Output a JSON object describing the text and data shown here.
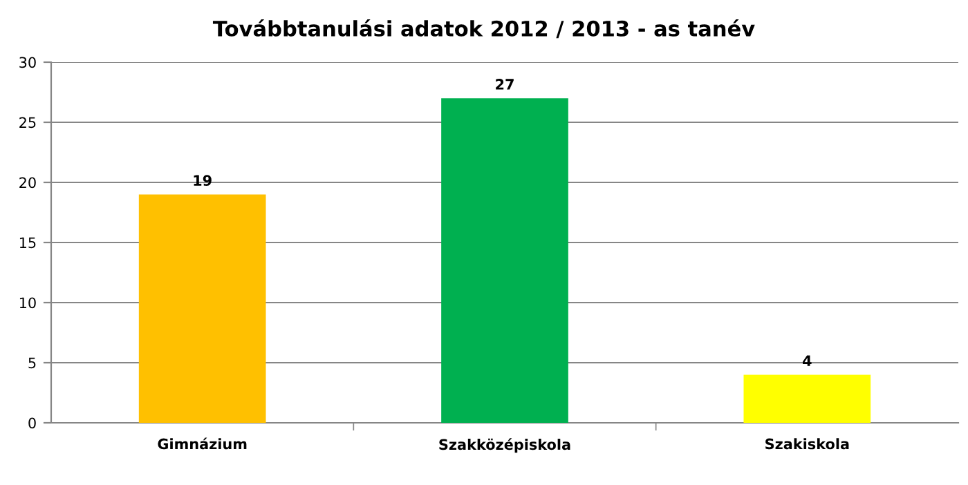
{
  "chart_data": {
    "type": "bar",
    "title": "Továbbtanulási adatok 2012 / 2013 - as tanév",
    "categories": [
      "Gimnázium",
      "Szakközépiskola",
      "Szakiskola"
    ],
    "values": [
      19,
      27,
      4
    ],
    "colors": [
      "#ffc000",
      "#00b050",
      "#ffff00"
    ],
    "ylim": [
      0,
      30
    ],
    "yticks": [
      0,
      5,
      10,
      15,
      20,
      25,
      30
    ],
    "grid": "y",
    "data_labels": true,
    "legend": false
  }
}
